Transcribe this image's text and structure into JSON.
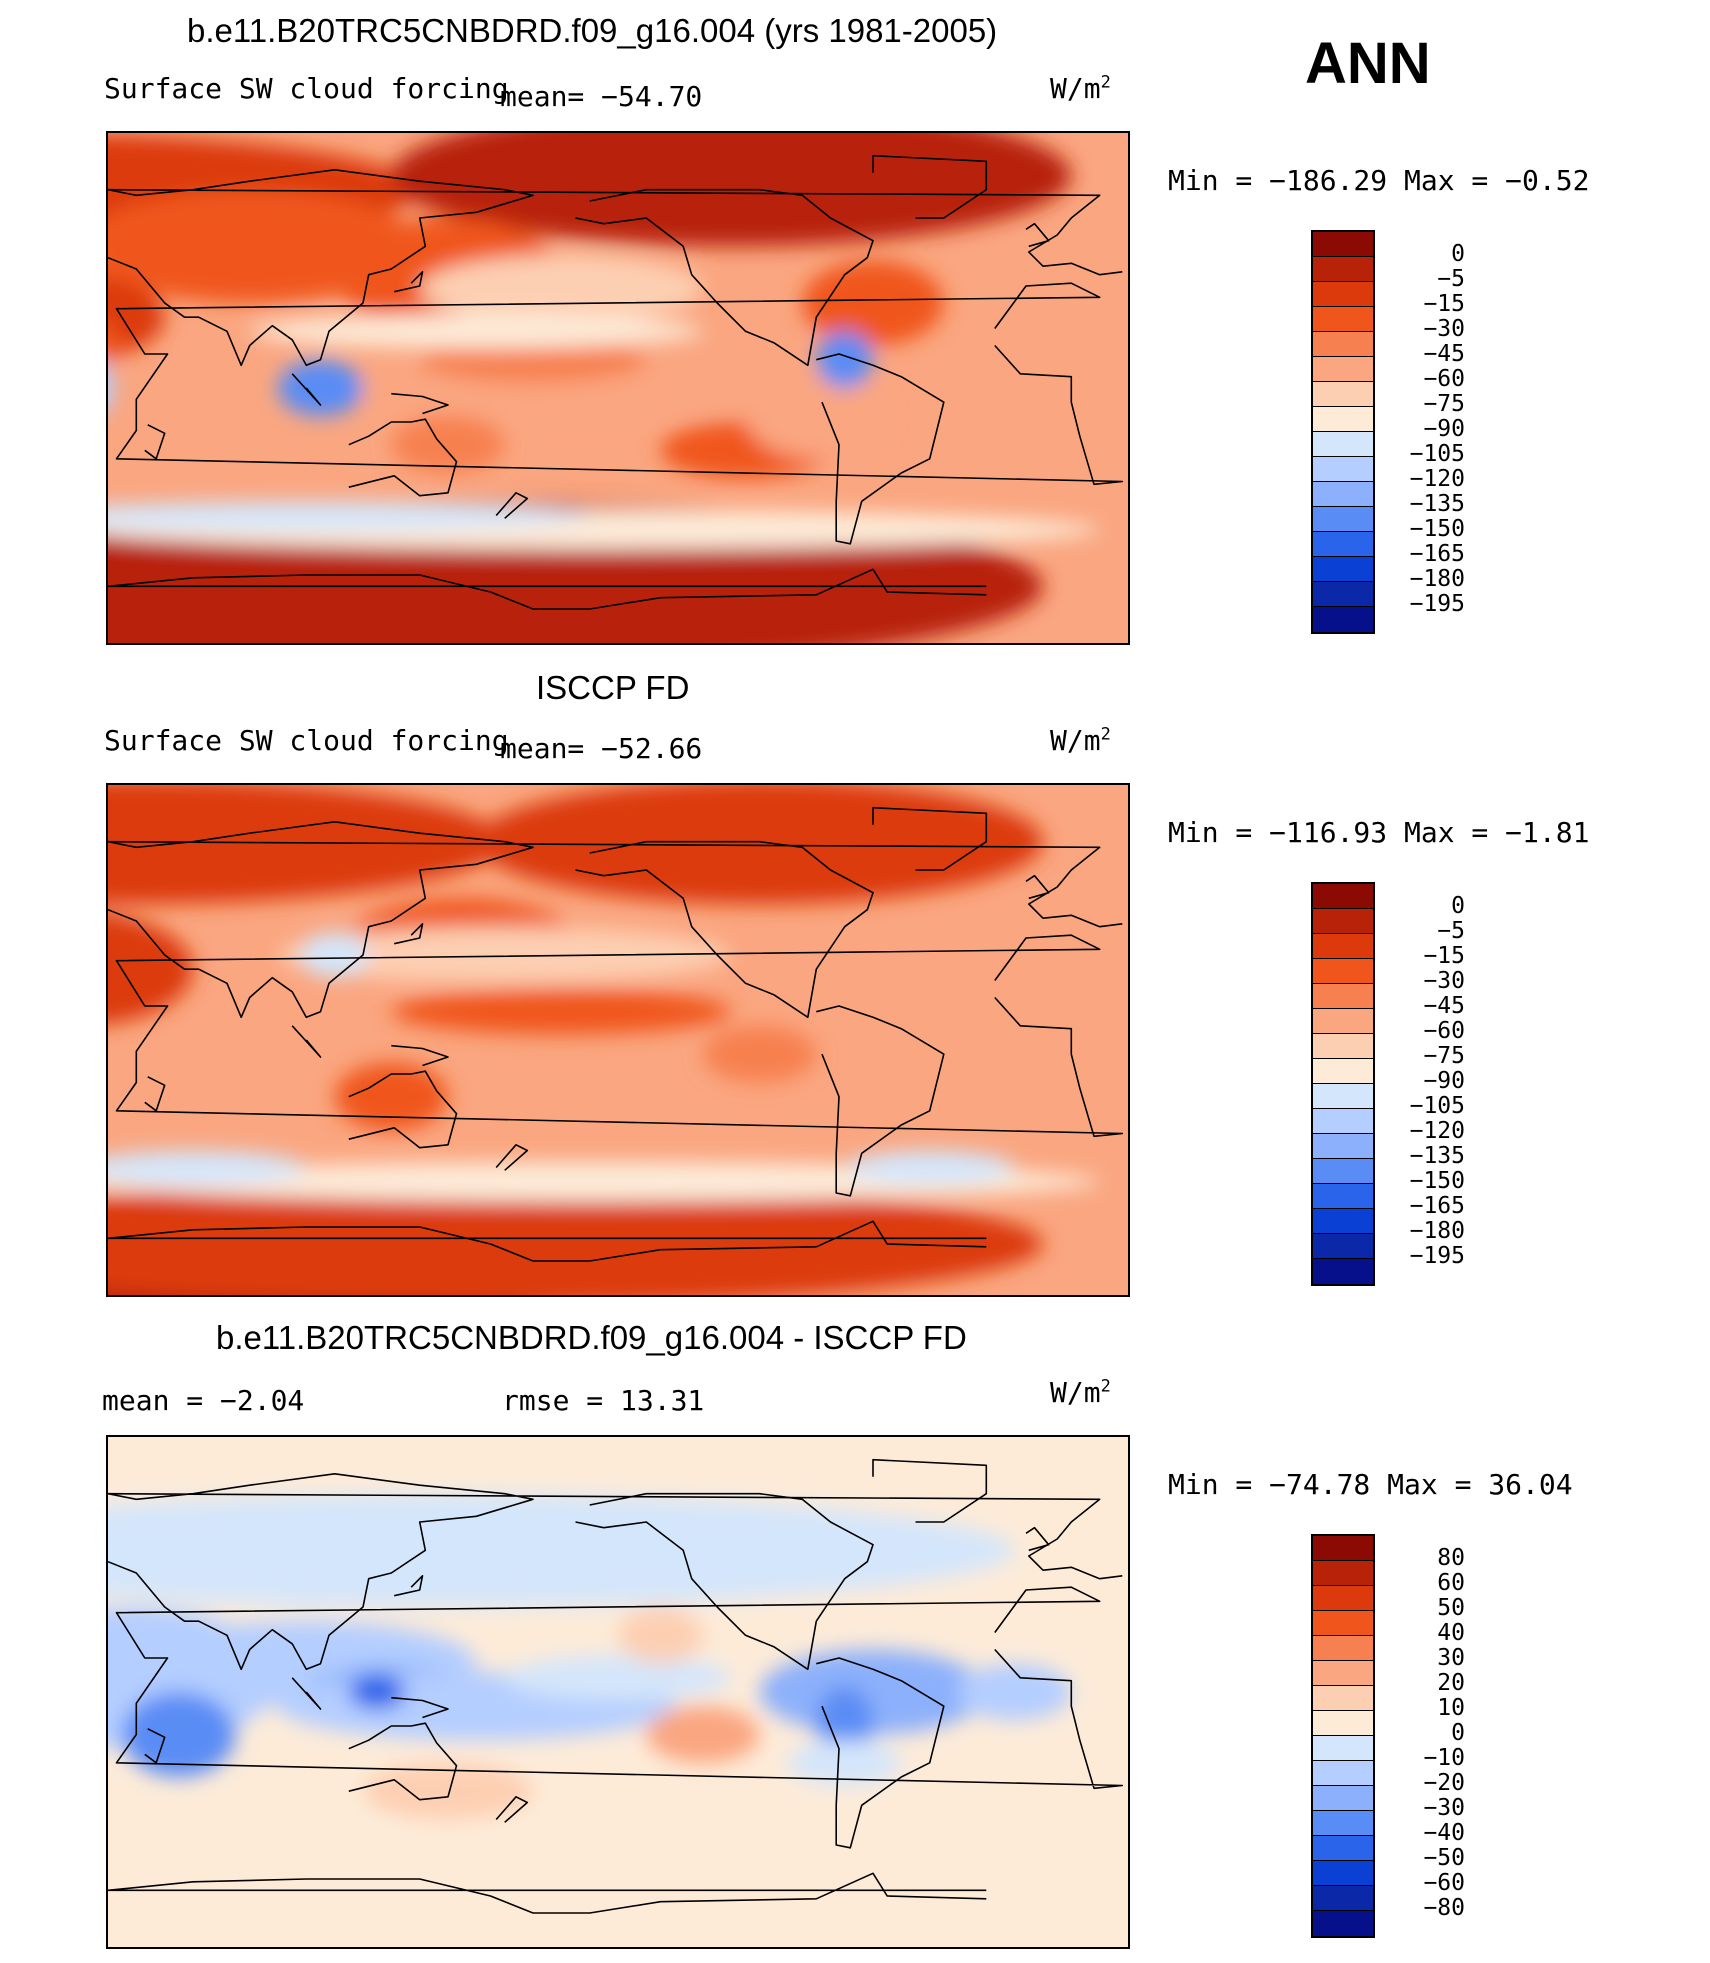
{
  "season": "ANN",
  "panels": [
    {
      "title": "b.e11.B20TRC5CNBDRD.f09_g16.004 (yrs 1981-2005)",
      "variable": "Surface SW cloud forcing",
      "stat1": "mean=  −54.70",
      "stat2": "",
      "unit": "W/m",
      "unit_exp": "2",
      "minmax": "Min  =  −186.29  Max  =   −0.52",
      "colorbar": {
        "labels": [
          "0",
          "−5",
          "−15",
          "−30",
          "−45",
          "−60",
          "−75",
          "−90",
          "−105",
          "−120",
          "−135",
          "−150",
          "−165",
          "−180",
          "−195"
        ],
        "colors": [
          "#8b0a04",
          "#b82208",
          "#dc3a0c",
          "#f0561c",
          "#f78050",
          "#faa680",
          "#fdcfb2",
          "#fdebd8",
          "#d4e6fb",
          "#b4ceff",
          "#8cb0fb",
          "#5a8cf5",
          "#2a64ea",
          "#0b40d4",
          "#0a28a8",
          "#06108a"
        ]
      },
      "field": "model"
    },
    {
      "title": "ISCCP FD",
      "variable": "Surface SW cloud forcing",
      "stat1": "mean=  −52.66",
      "stat2": "",
      "unit": "W/m",
      "unit_exp": "2",
      "minmax": "Min  =  −116.93  Max  =   −1.81",
      "colorbar": {
        "labels": [
          "0",
          "−5",
          "−15",
          "−30",
          "−45",
          "−60",
          "−75",
          "−90",
          "−105",
          "−120",
          "−135",
          "−150",
          "−165",
          "−180",
          "−195"
        ],
        "colors": [
          "#8b0a04",
          "#b82208",
          "#dc3a0c",
          "#f0561c",
          "#f78050",
          "#faa680",
          "#fdcfb2",
          "#fdebd8",
          "#d4e6fb",
          "#b4ceff",
          "#8cb0fb",
          "#5a8cf5",
          "#2a64ea",
          "#0b40d4",
          "#0a28a8",
          "#06108a"
        ]
      },
      "field": "obs"
    },
    {
      "title": "b.e11.B20TRC5CNBDRD.f09_g16.004 - ISCCP FD",
      "variable": "",
      "stat1": "mean  =    −2.04",
      "stat2": "rmse  =    13.31",
      "unit": "W/m",
      "unit_exp": "2",
      "minmax": "Min  =  −74.78  Max  =    36.04",
      "colorbar": {
        "labels": [
          "80",
          "60",
          "50",
          "40",
          "30",
          "20",
          "10",
          "0",
          "−10",
          "−20",
          "−30",
          "−40",
          "−50",
          "−60",
          "−80"
        ],
        "colors": [
          "#8b0a04",
          "#b82208",
          "#dc3a0c",
          "#f0561c",
          "#f78050",
          "#faa680",
          "#fdcfb2",
          "#fdebd8",
          "#d4e6fb",
          "#b4ceff",
          "#8cb0fb",
          "#5a8cf5",
          "#2a64ea",
          "#0b40d4",
          "#0a28a8",
          "#06108a"
        ]
      },
      "field": "diff"
    }
  ]
}
